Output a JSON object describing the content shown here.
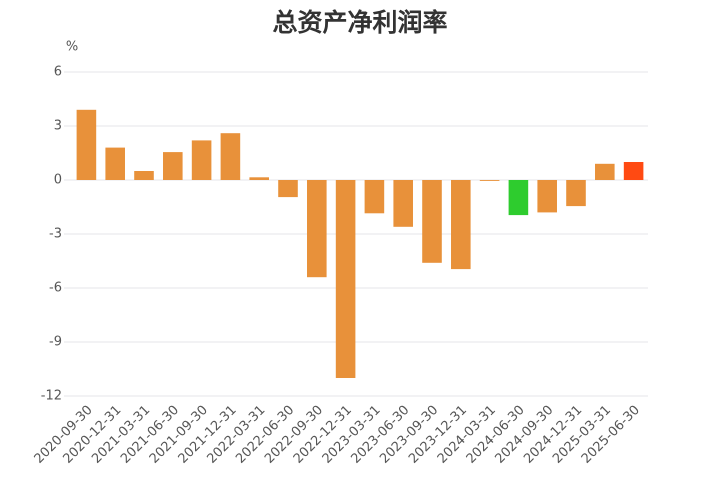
{
  "chart_data": {
    "type": "bar",
    "title": "总资产净利润率",
    "y_unit": "%",
    "categories": [
      "2020-09-30",
      "2020-12-31",
      "2021-03-31",
      "2021-06-30",
      "2021-09-30",
      "2021-12-31",
      "2022-03-31",
      "2022-06-30",
      "2022-09-30",
      "2022-12-31",
      "2023-03-31",
      "2023-06-30",
      "2023-09-30",
      "2023-12-31",
      "2024-03-31",
      "2024-06-30",
      "2024-09-30",
      "2024-12-31",
      "2025-03-31",
      "2025-06-30"
    ],
    "values": [
      3.9,
      1.8,
      0.5,
      1.55,
      2.2,
      2.6,
      0.15,
      -0.95,
      -5.4,
      -11.0,
      -1.85,
      -2.6,
      -4.6,
      -4.95,
      -0.05,
      -1.95,
      -1.8,
      -1.45,
      0.9,
      1.0
    ],
    "colors": [
      "#e8913a",
      "#e8913a",
      "#e8913a",
      "#e8913a",
      "#e8913a",
      "#e8913a",
      "#e8913a",
      "#e8913a",
      "#e8913a",
      "#e8913a",
      "#e8913a",
      "#e8913a",
      "#e8913a",
      "#e8913a",
      "#e8913a",
      "#2ecc2e",
      "#e8913a",
      "#e8913a",
      "#e8913a",
      "#ff4a12"
    ],
    "ylim": [
      -12,
      6
    ],
    "yticks": [
      -12,
      -9,
      -6,
      -3,
      0,
      3,
      6
    ],
    "grid": true
  }
}
